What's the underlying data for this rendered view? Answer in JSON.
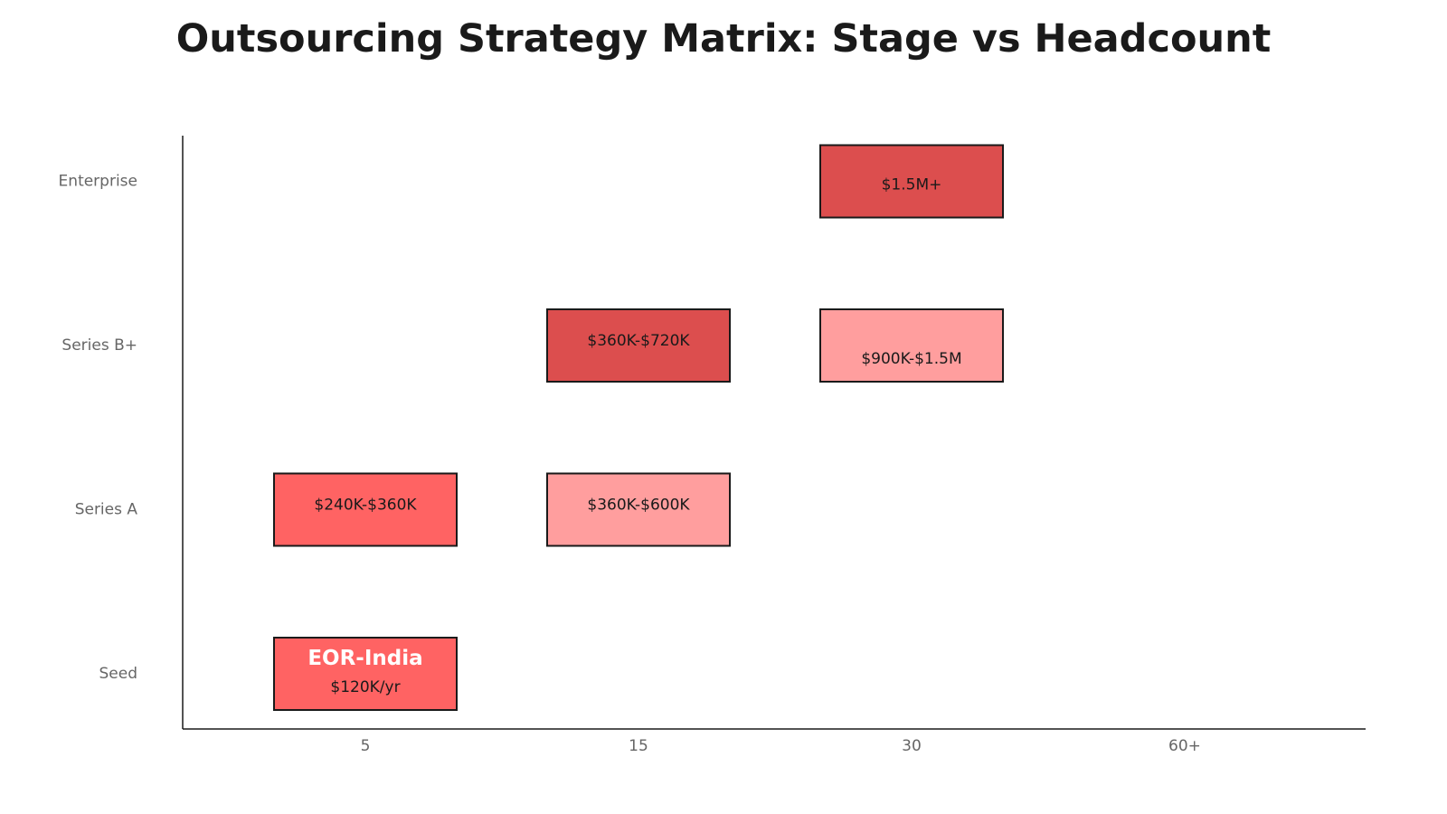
{
  "chart_data": {
    "type": "heatmap",
    "title": "Outsourcing Strategy Matrix: Stage vs Headcount",
    "x_categories": [
      "5",
      "15",
      "30",
      "60+"
    ],
    "y_categories": [
      "Seed",
      "Series A",
      "Series B+",
      "Enterprise"
    ],
    "cells": [
      {
        "x": "5",
        "y": "Seed",
        "title": "EOR-India",
        "label": "$120K/yr",
        "color": "#ff6363"
      },
      {
        "x": "5",
        "y": "Series A",
        "title": "",
        "label": "$240K-$360K",
        "color": "#ff6363"
      },
      {
        "x": "15",
        "y": "Series A",
        "title": "",
        "label": "$360K-$600K",
        "color": "#ff9e9e"
      },
      {
        "x": "15",
        "y": "Series B+",
        "title": "",
        "label": "$360K-$720K",
        "color": "#dc4e4e"
      },
      {
        "x": "30",
        "y": "Series B+",
        "title": "",
        "label": "$900K-$1.5M",
        "color": "#ff9e9e"
      },
      {
        "x": "30",
        "y": "Enterprise",
        "title": "",
        "label": "$1.5M+",
        "color": "#dc4e4e"
      }
    ],
    "axis_color": "#1a1a1a",
    "tick_color": "#666666",
    "grid": false
  }
}
